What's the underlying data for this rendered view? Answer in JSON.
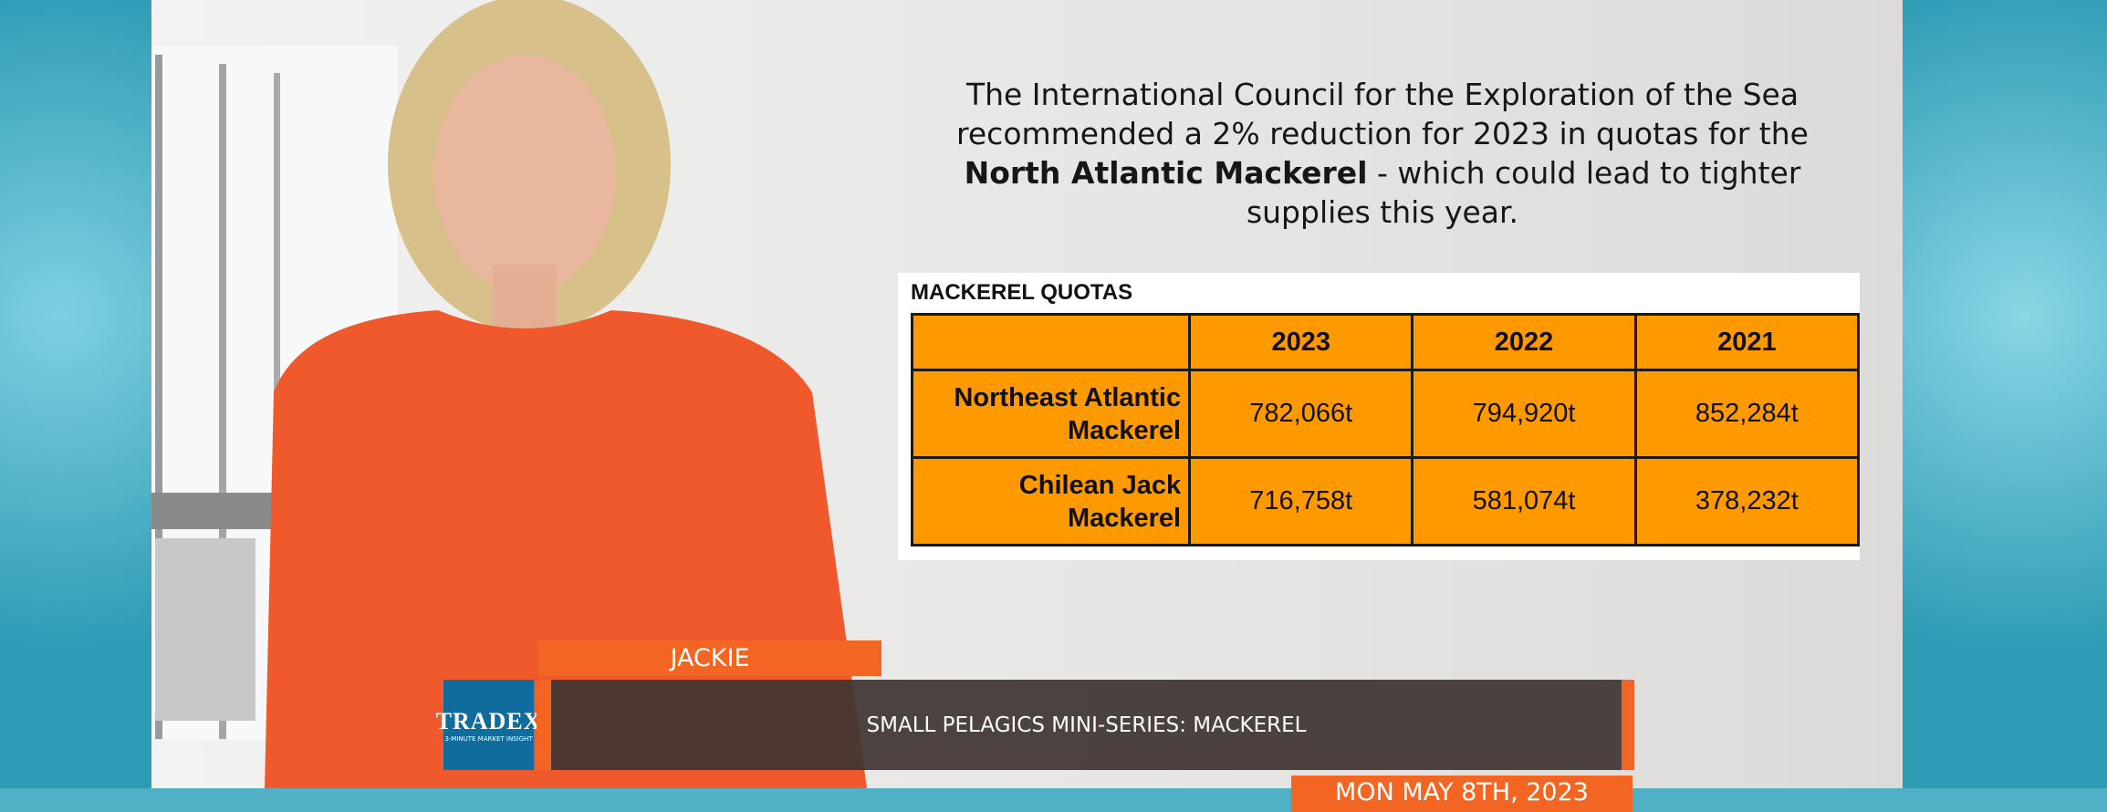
{
  "paragraph": {
    "segments": [
      {
        "text": "The International Council for the Exploration of the Sea recommended a 2% reduction for 2023 in quotas for the ",
        "bold": false
      },
      {
        "text": "North Atlantic Mackerel",
        "bold": true
      },
      {
        "text": " - which could lead to tighter supplies this year.",
        "bold": false
      }
    ]
  },
  "table": {
    "title": "MACKEREL QUOTAS",
    "header": [
      "2023",
      "2022",
      "2021"
    ],
    "rows": [
      {
        "label": "Northeast Atlantic Mackerel",
        "cells": [
          "782,066t",
          "794,920t",
          "852,284t"
        ]
      },
      {
        "label": "Chilean Jack Mackerel",
        "cells": [
          "716,758t",
          "581,074t",
          "378,232t"
        ]
      }
    ]
  },
  "lower_third": {
    "name": "JACKIE",
    "headline": "SMALL PELAGICS MINI-SERIES: MACKEREL",
    "date": "MON MAY 8TH, 2023",
    "logo": {
      "brand": "TRADEX",
      "tagline": "3-MINUTE MARKET INSIGHT"
    }
  }
}
